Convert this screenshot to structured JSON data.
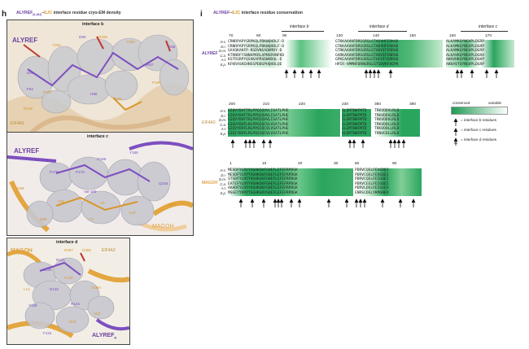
{
  "panel_h": {
    "label": "h",
    "title_prefix": "ALYREF",
    "title_sub": "(6-162)",
    "title_mid": "–",
    "title_ejc": "EJC",
    "title_rest": " interface residue cryo-EM density",
    "sub1": {
      "title": "interface b",
      "protein": "ALYREF",
      "secondary": "EIF4A3",
      "residues": [
        "D93",
        "F92",
        "D90",
        "R206",
        "Y202",
        "Y202",
        "D85",
        "W87",
        "R136",
        "H88",
        "Y208",
        "P207",
        "P186"
      ]
    },
    "sub2": {
      "title": "interface c",
      "protein": "ALYREF",
      "secondary": "MAGOH",
      "residues": [
        "G168",
        "Y166",
        "P175",
        "P170",
        "Val-169",
        "Q165",
        "H86",
        "V31",
        "Y5",
        "Q23",
        "E88",
        "Y3",
        "K37"
      ]
    },
    "sub3": {
      "title": "interface d",
      "protein": "MAGOH",
      "secondary": "EIF4A3",
      "tertiary": "ALYREF",
      "tertiary_sub": "N",
      "residues": [
        "R387",
        "D385",
        "R141",
        "S142",
        "D384",
        "D140",
        "Y139",
        "R144",
        "F115",
        "L14",
        "V83",
        "R40",
        "F143"
      ]
    }
  },
  "panel_i": {
    "label": "i",
    "title_prefix": "ALYREF",
    "title_mid": "–",
    "title_ejc": "EJC",
    "title_rest": " interface residue conservation",
    "species": [
      "H.s.",
      "D.r.",
      "D.m.",
      "C.a.",
      "A.t.",
      "S.p."
    ],
    "alyref": {
      "name": "ALYREF",
      "numbers": [
        "70",
        "80",
        "90",
        "130",
        "140",
        "150",
        "160",
        "170"
      ],
      "interfaces": [
        "interface b",
        "interface d",
        "interface c"
      ],
      "seq1": [
        "CRNRPAPYSRPKQLPDKWQHDLF-D",
        "CRNRPAPYSRPKQLPDKWQHDLF-D",
        "GAVQKAKFP-RGDVNSAQKMDY-D",
        "KTRNRFYSNNAPKRLAPNSRVNFKD",
        "KSTRSRPYQSAKAPRSDWHDQL-D",
        "KFKRASKEHNSSPDDGPHQHDLQE"
      ],
      "seq2": [
        "GTKKAAVHFDRSGRSLGTADVHFERKAD",
        "GTKKAAVHFDRSGRSLGTADVHFERKAD",
        "GTRKAAVHFDRSGRSLGTADVIFERRAD",
        "GARKAAVHFDRSGRSLGTADVIFENRSD",
        "GPKEAAVHFDRSGRSLGTAEVIYSRRGD",
        "HPIR-VMMNFDRNGRSLGTSDVKFAEPK"
      ],
      "seq3": [
        "ALKAMKQYNGVPLDGRP",
        "ALKAMKQYNGVPLDGRP",
        "ALKAMKQYNGVPLDGRP",
        "ALKAVKQYNGVPLDGRA",
        "AKKVHKQYNGVPLDGKP",
        "AKKAVTQYNGVPLDGRP"
      ]
    },
    "eif4a3": {
      "name": "EIF4A3",
      "numbers": [
        "200",
        "210",
        "220",
        "230",
        "380",
        "390"
      ],
      "seq1": [
        "GIQVYDVFTRLPPQIQVVLISATLPHE",
        "GIQVYDVFTRLPPQIQVVLISATLPHE",
        "GIQVYDVFTRLPPQIQVVLISATLPHE",
        "GIQVYDVFLRLPPQIQCVLVSATLPHE",
        "GIQVYDVFLRLPPQIQCVLVSATLPHE",
        "GIQIYDVFLRLPQSIQCVLVSATLPHE"
      ],
      "seq2": [
        "ILEMTNKFMTD",
        "ILEMTNKFMTD",
        "ILEMTNKFMTD",
        "ILEMTNKFMTD",
        "ILEMTNKFMTD",
        "VLEMTNKFMTD"
      ],
      "seq3": [
        "TRKVDDVLRLD",
        "TRKVDDVLRLD",
        "TRKVDDVLRLD",
        "TRKVDDLLRLD",
        "TRKVDDLLRLD",
        "TRNVEDLLRLD"
      ]
    },
    "magoh": {
      "name": "MAGOH",
      "numbers": [
        "1",
        "10",
        "20",
        "30",
        "80",
        "90"
      ],
      "seq1": [
        "MESDFYLRYYVGHKGKFGHEFLEFEFRPDGK",
        "MESDFYLRYYVGHKGKFGHEFLEFEFRPDGK",
        "STSDFYLRYYVGHKGKFGHEFLEFEFRPDGK",
        "EATEFYLRYYVGHKGKFGHEFLEFEFRPDGK",
        "AAADFYLRYYVGHKGKFGHEFLEFEFRPDGK",
        "MSGEYYVRYYSGHKGRYGHEFLEFEFRPDGK"
      ],
      "seq2": [
        "PDRVCQELFEVGDEI",
        "PDRVCQELFEVGDEI",
        "PDRVCQELFEIGDEI",
        "PDRVCEELFEIGDEI",
        "PDRVLDELFEIGEEV",
        "ENRSCDELYKMGNEV"
      ]
    },
    "legend": {
      "conserved": "conserved",
      "variable": "variable",
      "items": [
        "= interface b residues",
        "= interface c residues",
        "= interface d residues"
      ]
    }
  }
}
